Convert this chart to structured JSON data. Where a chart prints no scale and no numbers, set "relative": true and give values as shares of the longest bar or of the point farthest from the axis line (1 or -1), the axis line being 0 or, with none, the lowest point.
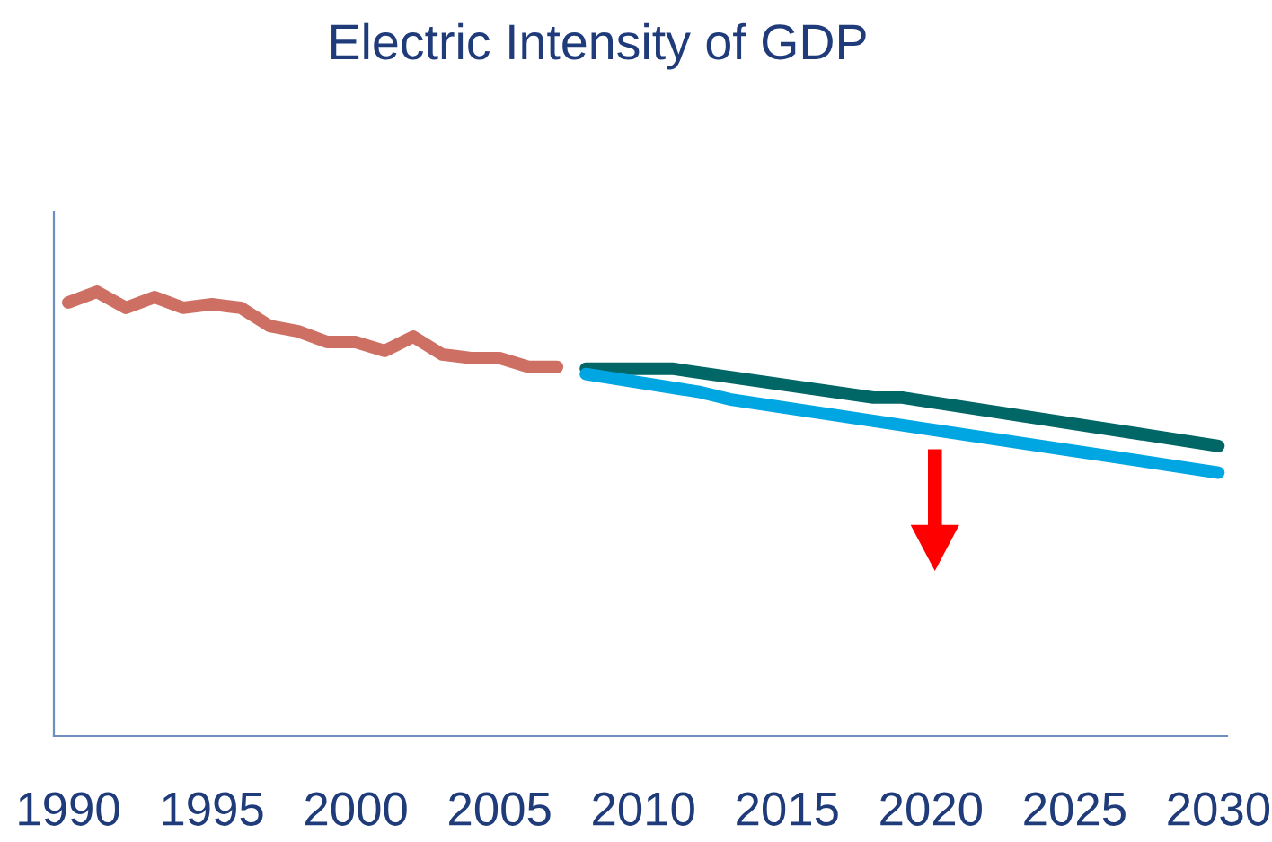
{
  "chart_data": {
    "type": "line",
    "title": "Electric Intensity of GDP",
    "relative": true,
    "xlim": [
      1989.5,
      2030.3
    ],
    "xticks": [
      1990,
      1995,
      2000,
      2005,
      2010,
      2015,
      2020,
      2025,
      2030
    ],
    "grid": false,
    "legend": false,
    "marker": "none",
    "line_style": "solid",
    "series": [
      {
        "color": "#cd7063",
        "x": [
          1990,
          1991,
          1992,
          1993,
          1994,
          1995,
          1996,
          1997,
          1998,
          1999,
          2000,
          2001,
          2002,
          2003,
          2004,
          2005,
          2006,
          2007
        ],
        "values": [
          0.976,
          1,
          0.964,
          0.988,
          0.964,
          0.972,
          0.964,
          0.923,
          0.911,
          0.887,
          0.887,
          0.867,
          0.899,
          0.859,
          0.851,
          0.851,
          0.831,
          0.831
        ]
      },
      {
        "color": "#006666",
        "x": [
          2008,
          2011,
          2018,
          2019,
          2030
        ],
        "values": [
          0.827,
          0.827,
          0.762,
          0.762,
          0.653
        ]
      },
      {
        "color": "#00a6e2",
        "x": [
          2008,
          2012,
          2013,
          2030
        ],
        "values": [
          0.815,
          0.774,
          0.758,
          0.593
        ]
      }
    ]
  }
}
